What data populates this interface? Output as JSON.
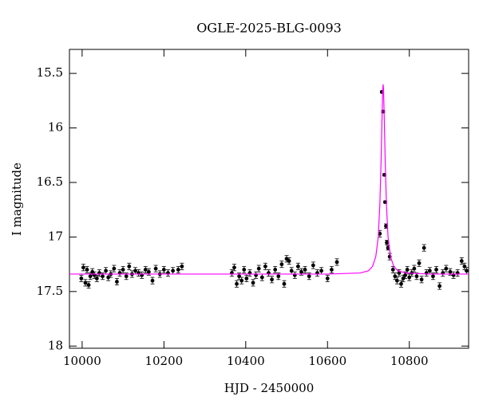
{
  "chart_data": {
    "type": "scatter",
    "title": "OGLE-2025-BLG-0093",
    "xlabel": "HJD - 2450000",
    "ylabel": "I magnitude",
    "xlim": [
      9969,
      10945
    ],
    "ylim": [
      15.28,
      18.02
    ],
    "y_inverted": true,
    "xticks": [
      10000,
      10200,
      10400,
      10600,
      10800
    ],
    "yticks": [
      15.5,
      16,
      16.5,
      17,
      17.5,
      18
    ],
    "series": [
      {
        "style": "points",
        "color": "#000000",
        "x": [
          9998,
          10003,
          10008,
          10012,
          10016,
          10020,
          10025,
          10030,
          10036,
          10042,
          10050,
          10058,
          10064,
          10070,
          10078,
          10085,
          10092,
          10100,
          10108,
          10115,
          10122,
          10130,
          10138,
          10146,
          10155,
          10163,
          10172,
          10180,
          10190,
          10200,
          10210,
          10222,
          10235,
          10244,
          10366,
          10372,
          10378,
          10384,
          10390,
          10396,
          10402,
          10410,
          10418,
          10425,
          10432,
          10440,
          10448,
          10456,
          10464,
          10472,
          10480,
          10488,
          10494,
          10500,
          10506,
          10512,
          10520,
          10528,
          10536,
          10545,
          10555,
          10565,
          10575,
          10585,
          10600,
          10610,
          10623,
          10728,
          10733,
          10736,
          10739,
          10741,
          10743,
          10745,
          10748,
          10752,
          10760,
          10765,
          10770,
          10775,
          10780,
          10785,
          10790,
          10795,
          10800,
          10806,
          10812,
          10818,
          10824,
          10830,
          10836,
          10842,
          10850,
          10858,
          10866,
          10874,
          10882,
          10890,
          10900,
          10908,
          10918,
          10928,
          10935,
          10940
        ],
        "values": [
          17.38,
          17.28,
          17.42,
          17.3,
          17.44,
          17.36,
          17.32,
          17.35,
          17.38,
          17.33,
          17.36,
          17.31,
          17.37,
          17.34,
          17.29,
          17.41,
          17.33,
          17.3,
          17.36,
          17.27,
          17.34,
          17.31,
          17.33,
          17.35,
          17.3,
          17.32,
          17.4,
          17.29,
          17.34,
          17.3,
          17.33,
          17.31,
          17.3,
          17.27,
          17.33,
          17.28,
          17.43,
          17.36,
          17.4,
          17.3,
          17.38,
          17.33,
          17.42,
          17.35,
          17.29,
          17.37,
          17.27,
          17.33,
          17.39,
          17.3,
          17.36,
          17.25,
          17.43,
          17.2,
          17.22,
          17.31,
          17.35,
          17.27,
          17.32,
          17.3,
          17.36,
          17.26,
          17.33,
          17.31,
          17.38,
          17.3,
          17.23,
          16.97,
          15.67,
          15.85,
          16.43,
          16.68,
          16.9,
          17.05,
          17.1,
          17.18,
          17.3,
          17.36,
          17.4,
          17.33,
          17.43,
          17.38,
          17.35,
          17.3,
          17.37,
          17.33,
          17.29,
          17.36,
          17.24,
          17.39,
          17.1,
          17.33,
          17.31,
          17.36,
          17.3,
          17.45,
          17.33,
          17.29,
          17.32,
          17.35,
          17.33,
          17.22,
          17.27,
          17.31
        ],
        "errors": [
          0.03,
          0.03,
          0.03,
          0.03,
          0.03,
          0.03,
          0.03,
          0.03,
          0.03,
          0.03,
          0.03,
          0.03,
          0.03,
          0.03,
          0.03,
          0.03,
          0.03,
          0.03,
          0.03,
          0.03,
          0.03,
          0.03,
          0.03,
          0.03,
          0.03,
          0.03,
          0.03,
          0.03,
          0.03,
          0.03,
          0.03,
          0.03,
          0.03,
          0.03,
          0.03,
          0.03,
          0.03,
          0.03,
          0.03,
          0.03,
          0.03,
          0.03,
          0.03,
          0.03,
          0.03,
          0.03,
          0.03,
          0.03,
          0.03,
          0.03,
          0.03,
          0.03,
          0.03,
          0.03,
          0.03,
          0.03,
          0.03,
          0.03,
          0.03,
          0.03,
          0.03,
          0.03,
          0.03,
          0.03,
          0.03,
          0.03,
          0.03,
          0.03,
          0.01,
          0.01,
          0.01,
          0.01,
          0.02,
          0.02,
          0.02,
          0.03,
          0.03,
          0.03,
          0.03,
          0.03,
          0.03,
          0.03,
          0.03,
          0.03,
          0.03,
          0.03,
          0.03,
          0.03,
          0.03,
          0.03,
          0.03,
          0.03,
          0.03,
          0.03,
          0.03,
          0.03,
          0.03,
          0.03,
          0.03,
          0.03,
          0.03,
          0.03,
          0.03,
          0.03
        ]
      },
      {
        "style": "line",
        "color": "#ff00ff",
        "x": [
          9969,
          10600,
          10680,
          10700,
          10710,
          10718,
          10724,
          10728,
          10731,
          10733,
          10735,
          10736,
          10737,
          10739,
          10741,
          10744,
          10748,
          10754,
          10762,
          10772,
          10792,
          10850,
          10945
        ],
        "values": [
          17.34,
          17.34,
          17.33,
          17.31,
          17.27,
          17.18,
          17.0,
          16.7,
          16.3,
          15.95,
          15.65,
          15.6,
          15.65,
          15.95,
          16.3,
          16.7,
          17.0,
          17.18,
          17.27,
          17.31,
          17.33,
          17.34,
          17.34
        ]
      }
    ]
  }
}
